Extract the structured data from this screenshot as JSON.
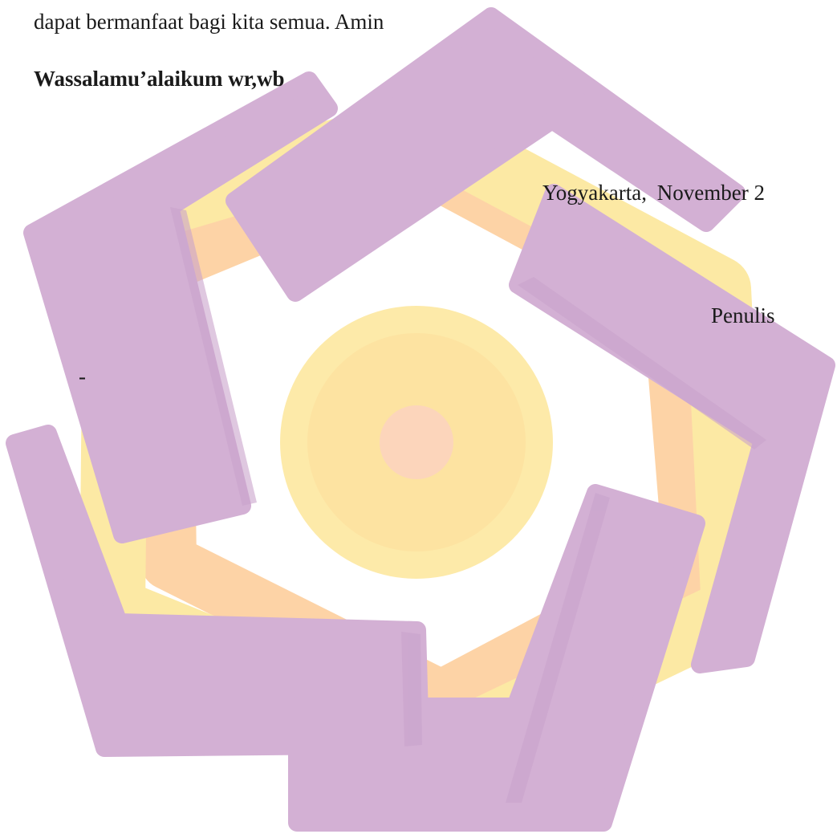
{
  "document": {
    "closing_line": "dapat bermanfaat bagi kita semua. Amin",
    "salam": "Wassalamu’alaikum wr,wb",
    "place": "Yogyakarta,",
    "date": "November 2",
    "writer_label": "Penulis",
    "dash": "-"
  },
  "watermark": {
    "type": "university-logo",
    "colors": {
      "purple": "#d3b0d4",
      "purple_shadow": "#c59fc9",
      "yellow": "#fce9a4",
      "orange": "#fdd3a6",
      "circle_outer": "#fdeaa9",
      "circle_middle": "#fde3a1",
      "circle_core": "#fcd5bb"
    }
  }
}
